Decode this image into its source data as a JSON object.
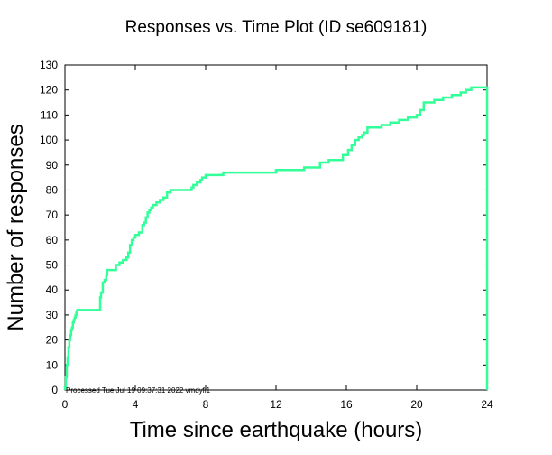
{
  "chart_data": {
    "type": "line",
    "title": "Responses vs. Time Plot (ID se609181)",
    "xlabel": "Time since earthquake (hours)",
    "ylabel": "Number of responses",
    "xlim": [
      0,
      24
    ],
    "ylim": [
      0,
      130
    ],
    "x_ticks": [
      0,
      4,
      8,
      12,
      16,
      20,
      24
    ],
    "y_ticks": [
      0,
      10,
      20,
      30,
      40,
      50,
      60,
      70,
      80,
      90,
      100,
      110,
      120,
      130
    ],
    "grid": false,
    "legend": "none",
    "line_color": "#33ff99",
    "series": [
      {
        "x": [
          0,
          0.05,
          0.1,
          0.15,
          0.2,
          0.25,
          0.3,
          0.35,
          0.4,
          0.45,
          0.5,
          0.55,
          0.6,
          0.65,
          0.7,
          0.8,
          1.0,
          1.9,
          2.0,
          2.05,
          2.15,
          2.25,
          2.35,
          2.4,
          2.5,
          2.6,
          2.7,
          2.9,
          3.1,
          3.3,
          3.5,
          3.6,
          3.7,
          3.8,
          3.9,
          4.0,
          4.2,
          4.4,
          4.5,
          4.6,
          4.7,
          4.8,
          4.9,
          5.0,
          5.2,
          5.4,
          5.6,
          5.8,
          6.0,
          7.0,
          7.2,
          7.3,
          7.5,
          7.7,
          7.8,
          8.0,
          9.0,
          11.0,
          12.0,
          13.0,
          13.6,
          14.5,
          15.0,
          15.5,
          15.8,
          16.1,
          16.3,
          16.5,
          16.7,
          16.9,
          17.0,
          17.2,
          18.0,
          18.5,
          19.0,
          19.5,
          20.0,
          20.2,
          20.4,
          21.0,
          21.5,
          22.0,
          22.5,
          22.8,
          23.1,
          24.0
        ],
        "y": [
          1,
          5,
          10,
          13,
          17,
          20,
          22,
          24,
          25,
          27,
          28,
          29,
          30,
          31,
          32,
          32,
          32,
          32,
          37,
          39,
          43,
          44,
          46,
          48,
          48,
          48,
          48,
          50,
          51,
          52,
          53,
          55,
          58,
          60,
          61,
          62,
          63,
          66,
          67,
          69,
          71,
          72,
          73,
          74,
          75,
          76,
          77,
          79,
          80,
          80,
          81,
          82,
          83,
          84,
          85,
          86,
          87,
          87,
          88,
          88,
          89,
          91,
          92,
          92,
          94,
          96,
          98,
          100,
          101,
          102,
          103,
          105,
          106,
          107,
          108,
          109,
          110,
          112,
          115,
          116,
          117,
          118,
          119,
          120,
          121,
          121
        ]
      }
    ],
    "annotation": "Processed Tue Jul 19 09:37:31 2022 vmdyfi1"
  }
}
